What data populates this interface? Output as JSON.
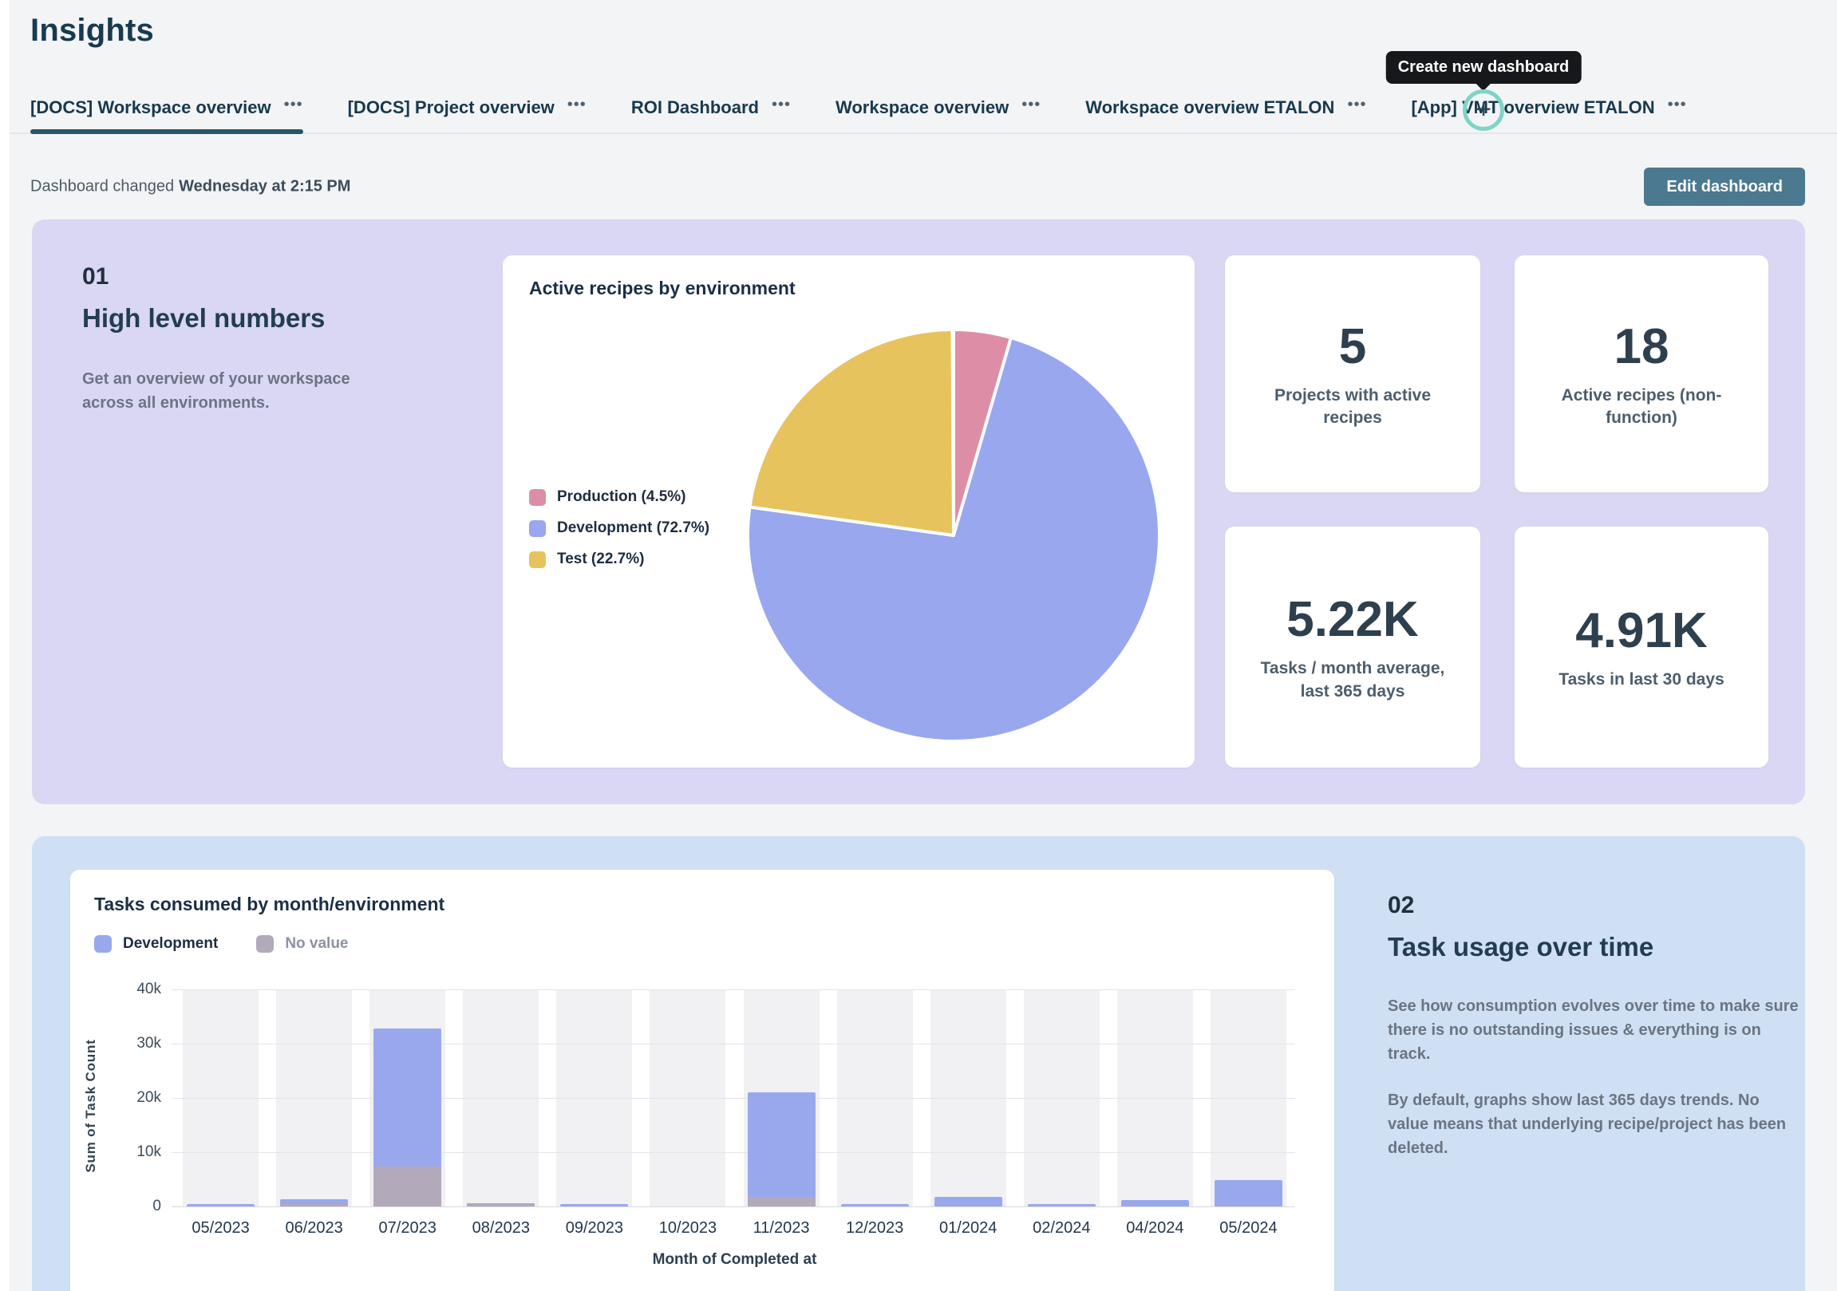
{
  "page": {
    "title": "Insights"
  },
  "tabs": {
    "items": [
      {
        "label": "[DOCS] Workspace overview",
        "active": true
      },
      {
        "label": "[DOCS] Project overview",
        "active": false
      },
      {
        "label": "ROI Dashboard",
        "active": false
      },
      {
        "label": "Workspace overview",
        "active": false
      },
      {
        "label": "Workspace overview ETALON",
        "active": false
      },
      {
        "label": "[App] VMT overview ETALON",
        "active": false
      }
    ],
    "add_tooltip": "Create new dashboard"
  },
  "toolbar": {
    "changed_prefix": "Dashboard changed",
    "changed_time": "Wednesday at 2:15 PM",
    "edit_label": "Edit dashboard"
  },
  "section1": {
    "number": "01",
    "title": "High level numbers",
    "description": "Get an overview of your workspace across all environments.",
    "stats": [
      {
        "value": "5",
        "label": "Projects with active recipes"
      },
      {
        "value": "18",
        "label": "Active recipes (non-function)"
      },
      {
        "value": "5.22K",
        "label": "Tasks / month average, last 365 days"
      },
      {
        "value": "4.91K",
        "label": "Tasks in last 30 days"
      }
    ]
  },
  "section2": {
    "number": "02",
    "title": "Task usage over time",
    "p1": "See how consumption evolves over time to make sure there is no outstanding issues & everything is on track.",
    "p2": "By default, graphs show last 365 days trends. No value means that underlying recipe/project has been deleted."
  },
  "colors": {
    "accent_teal": "#4b7990",
    "active_tab_underline": "#2a5565",
    "panel1_bg": "#d9d7f3",
    "panel2_bg": "#cfe0f4",
    "highlight_ring": "#7fd4c6",
    "tooltip_bg": "#17181c"
  },
  "chart_data": [
    {
      "type": "pie",
      "title": "Active recipes by environment",
      "legend_position": "left",
      "start_angle_deg": -90,
      "direction": "clockwise",
      "slices": [
        {
          "label": "Production",
          "pct": 4.5,
          "color": "#dd8ea6"
        },
        {
          "label": "Development",
          "pct": 72.7,
          "color": "#98a7ee"
        },
        {
          "label": "Test",
          "pct": 22.7,
          "color": "#e7c35e"
        }
      ]
    },
    {
      "type": "bar",
      "stacked": true,
      "title": "Tasks consumed by month/environment",
      "xlabel": "Month of Completed at",
      "ylabel": "Sum of Task Count",
      "ylim": [
        0,
        40000
      ],
      "yticks": [
        "40k",
        "30k",
        "20k",
        "10k",
        "0"
      ],
      "grid": true,
      "legend_position": "top",
      "categories": [
        "05/2023",
        "06/2023",
        "07/2023",
        "08/2023",
        "09/2023",
        "10/2023",
        "11/2023",
        "12/2023",
        "01/2024",
        "02/2024",
        "04/2024",
        "05/2024"
      ],
      "series": [
        {
          "name": "No value",
          "color": "#b2a9bb",
          "values": [
            0,
            500,
            7400,
            450,
            0,
            0,
            1700,
            0,
            0,
            0,
            0,
            0
          ]
        },
        {
          "name": "Development",
          "color": "#99a8ed",
          "values": [
            400,
            800,
            25400,
            100,
            400,
            0,
            19400,
            400,
            1800,
            400,
            1200,
            4800
          ]
        }
      ]
    }
  ]
}
